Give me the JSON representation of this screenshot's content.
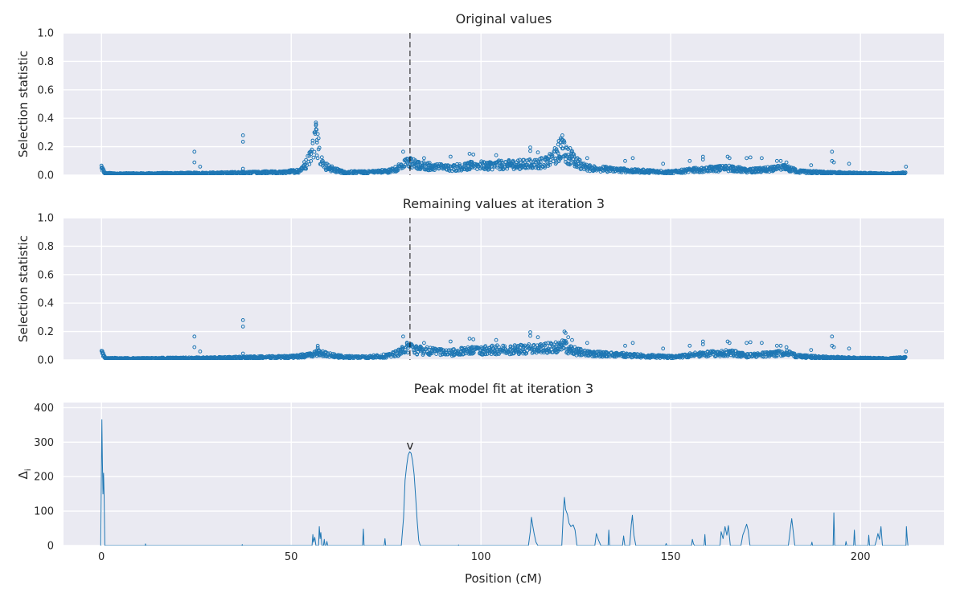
{
  "figure": {
    "xlabel": "Position (cM)"
  },
  "chart_data": [
    {
      "type": "scatter",
      "title": "Original values",
      "ylabel": "Selection statistic",
      "xlim": [
        -10,
        222
      ],
      "ylim": [
        0,
        1.0
      ],
      "x_ticks": [
        0,
        50,
        100,
        150,
        200
      ],
      "x_tick_labels": [
        "",
        "",
        "",
        "",
        ""
      ],
      "y_ticks": [
        0.0,
        0.2,
        0.4,
        0.6,
        0.8,
        1.0
      ],
      "y_tick_labels": [
        "0.0",
        "0.2",
        "0.4",
        "0.6",
        "0.8",
        "1.0"
      ],
      "vline_x": 81.3,
      "grid": true,
      "marker_color": "#1f77b4",
      "profile": [
        [
          0,
          0.06
        ],
        [
          0.5,
          0.03
        ],
        [
          1,
          0.012
        ],
        [
          5,
          0.01
        ],
        [
          10,
          0.01
        ],
        [
          20,
          0.012
        ],
        [
          30,
          0.014
        ],
        [
          40,
          0.018
        ],
        [
          48,
          0.02
        ],
        [
          52,
          0.03
        ],
        [
          54,
          0.08
        ],
        [
          55.5,
          0.17
        ],
        [
          56.5,
          0.27
        ],
        [
          57.5,
          0.15
        ],
        [
          58.5,
          0.07
        ],
        [
          61,
          0.04
        ],
        [
          64,
          0.02
        ],
        [
          70,
          0.02
        ],
        [
          76,
          0.03
        ],
        [
          79,
          0.06
        ],
        [
          81,
          0.095
        ],
        [
          83,
          0.07
        ],
        [
          87,
          0.06
        ],
        [
          92,
          0.05
        ],
        [
          97,
          0.065
        ],
        [
          103,
          0.07
        ],
        [
          110,
          0.075
        ],
        [
          115,
          0.08
        ],
        [
          118,
          0.1
        ],
        [
          120.5,
          0.16
        ],
        [
          121.5,
          0.2
        ],
        [
          123,
          0.14
        ],
        [
          125,
          0.09
        ],
        [
          128,
          0.05
        ],
        [
          134,
          0.04
        ],
        [
          140,
          0.03
        ],
        [
          146,
          0.025
        ],
        [
          150,
          0.02
        ],
        [
          156,
          0.035
        ],
        [
          162,
          0.045
        ],
        [
          166,
          0.05
        ],
        [
          170,
          0.03
        ],
        [
          176,
          0.04
        ],
        [
          180,
          0.05
        ],
        [
          184,
          0.025
        ],
        [
          190,
          0.018
        ],
        [
          200,
          0.012
        ],
        [
          207,
          0.01
        ],
        [
          212,
          0.015
        ]
      ],
      "outliers": [
        [
          24.5,
          0.165
        ],
        [
          24.5,
          0.09
        ],
        [
          26,
          0.06
        ],
        [
          37.3,
          0.28
        ],
        [
          37.3,
          0.235
        ],
        [
          37.3,
          0.045
        ],
        [
          56.5,
          0.37
        ],
        [
          56.5,
          0.35
        ],
        [
          56.7,
          0.32
        ],
        [
          57,
          0.29
        ],
        [
          57.2,
          0.26
        ],
        [
          56.8,
          0.23
        ],
        [
          79.5,
          0.165
        ],
        [
          85,
          0.12
        ],
        [
          92,
          0.13
        ],
        [
          97,
          0.15
        ],
        [
          98,
          0.145
        ],
        [
          104,
          0.14
        ],
        [
          113,
          0.195
        ],
        [
          113,
          0.17
        ],
        [
          115,
          0.16
        ],
        [
          121,
          0.26
        ],
        [
          121.5,
          0.25
        ],
        [
          122,
          0.23
        ],
        [
          120.5,
          0.24
        ],
        [
          122.5,
          0.2
        ],
        [
          123.5,
          0.19
        ],
        [
          124,
          0.17
        ],
        [
          128,
          0.12
        ],
        [
          138,
          0.1
        ],
        [
          140,
          0.12
        ],
        [
          148,
          0.08
        ],
        [
          155,
          0.1
        ],
        [
          158.5,
          0.13
        ],
        [
          158.5,
          0.11
        ],
        [
          165,
          0.13
        ],
        [
          165.5,
          0.12
        ],
        [
          170,
          0.12
        ],
        [
          171,
          0.125
        ],
        [
          174,
          0.12
        ],
        [
          178,
          0.1
        ],
        [
          179,
          0.1
        ],
        [
          180.5,
          0.09
        ],
        [
          187,
          0.07
        ],
        [
          192.5,
          0.165
        ],
        [
          192.5,
          0.1
        ],
        [
          193,
          0.09
        ],
        [
          197,
          0.08
        ],
        [
          212,
          0.06
        ]
      ]
    },
    {
      "type": "scatter",
      "title": "Remaining values at iteration 3",
      "ylabel": "Selection statistic",
      "xlim": [
        -10,
        222
      ],
      "ylim": [
        0,
        1.0
      ],
      "x_ticks": [
        0,
        50,
        100,
        150,
        200
      ],
      "x_tick_labels": [
        "",
        "",
        "",
        "",
        ""
      ],
      "y_ticks": [
        0.0,
        0.2,
        0.4,
        0.6,
        0.8,
        1.0
      ],
      "y_tick_labels": [
        "0.0",
        "0.2",
        "0.4",
        "0.6",
        "0.8",
        "1.0"
      ],
      "vline_x": 81.3,
      "grid": true,
      "marker_color": "#1f77b4",
      "profile": [
        [
          0,
          0.06
        ],
        [
          0.5,
          0.03
        ],
        [
          1,
          0.012
        ],
        [
          5,
          0.01
        ],
        [
          10,
          0.01
        ],
        [
          20,
          0.012
        ],
        [
          30,
          0.014
        ],
        [
          40,
          0.018
        ],
        [
          48,
          0.02
        ],
        [
          52,
          0.025
        ],
        [
          55,
          0.035
        ],
        [
          57,
          0.05
        ],
        [
          59,
          0.04
        ],
        [
          61,
          0.03
        ],
        [
          64,
          0.02
        ],
        [
          70,
          0.02
        ],
        [
          76,
          0.03
        ],
        [
          79,
          0.06
        ],
        [
          81,
          0.095
        ],
        [
          83,
          0.07
        ],
        [
          87,
          0.06
        ],
        [
          92,
          0.05
        ],
        [
          97,
          0.065
        ],
        [
          103,
          0.07
        ],
        [
          110,
          0.075
        ],
        [
          115,
          0.08
        ],
        [
          118,
          0.085
        ],
        [
          120.5,
          0.09
        ],
        [
          122,
          0.1
        ],
        [
          123,
          0.08
        ],
        [
          125,
          0.06
        ],
        [
          128,
          0.045
        ],
        [
          134,
          0.04
        ],
        [
          140,
          0.03
        ],
        [
          146,
          0.025
        ],
        [
          150,
          0.02
        ],
        [
          156,
          0.035
        ],
        [
          162,
          0.045
        ],
        [
          166,
          0.05
        ],
        [
          170,
          0.03
        ],
        [
          176,
          0.04
        ],
        [
          180,
          0.05
        ],
        [
          184,
          0.025
        ],
        [
          190,
          0.018
        ],
        [
          200,
          0.012
        ],
        [
          207,
          0.01
        ],
        [
          212,
          0.015
        ]
      ],
      "outliers": [
        [
          24.5,
          0.165
        ],
        [
          24.5,
          0.09
        ],
        [
          26,
          0.06
        ],
        [
          37.3,
          0.28
        ],
        [
          37.3,
          0.235
        ],
        [
          37.3,
          0.045
        ],
        [
          57,
          0.1
        ],
        [
          57,
          0.085
        ],
        [
          79.5,
          0.165
        ],
        [
          85,
          0.12
        ],
        [
          92,
          0.13
        ],
        [
          97,
          0.15
        ],
        [
          98,
          0.145
        ],
        [
          104,
          0.14
        ],
        [
          113,
          0.195
        ],
        [
          113,
          0.17
        ],
        [
          115,
          0.16
        ],
        [
          122,
          0.2
        ],
        [
          122.3,
          0.19
        ],
        [
          123,
          0.16
        ],
        [
          124,
          0.14
        ],
        [
          128,
          0.12
        ],
        [
          138,
          0.1
        ],
        [
          140,
          0.12
        ],
        [
          148,
          0.08
        ],
        [
          155,
          0.1
        ],
        [
          158.5,
          0.13
        ],
        [
          158.5,
          0.11
        ],
        [
          165,
          0.13
        ],
        [
          165.5,
          0.12
        ],
        [
          170,
          0.12
        ],
        [
          171,
          0.125
        ],
        [
          174,
          0.12
        ],
        [
          178,
          0.1
        ],
        [
          179,
          0.1
        ],
        [
          180.5,
          0.09
        ],
        [
          187,
          0.07
        ],
        [
          192.5,
          0.165
        ],
        [
          192.5,
          0.1
        ],
        [
          193,
          0.09
        ],
        [
          197,
          0.08
        ],
        [
          212,
          0.06
        ]
      ]
    },
    {
      "type": "line",
      "title": "Peak model fit at iteration 3",
      "ylabel": "Δ",
      "ylabel_sub": "i",
      "xlim": [
        -10,
        222
      ],
      "ylim": [
        0,
        415
      ],
      "x_ticks": [
        0,
        50,
        100,
        150,
        200
      ],
      "x_tick_labels": [
        "0",
        "50",
        "100",
        "150",
        "200"
      ],
      "y_ticks": [
        0,
        100,
        200,
        300,
        400
      ],
      "y_tick_labels": [
        "0",
        "100",
        "200",
        "300",
        "400"
      ],
      "grid": true,
      "line_color": "#1f77b4",
      "marker_label": "v",
      "marker_x": 81.3,
      "marker_y": 290,
      "points": [
        [
          -0.2,
          0
        ],
        [
          0.1,
          365
        ],
        [
          0.25,
          240
        ],
        [
          0.4,
          150
        ],
        [
          0.55,
          210
        ],
        [
          0.7,
          145
        ],
        [
          0.9,
          0
        ],
        [
          11.5,
          0
        ],
        [
          11.6,
          5
        ],
        [
          11.7,
          0
        ],
        [
          37,
          0
        ],
        [
          37.1,
          3
        ],
        [
          37.2,
          0
        ],
        [
          55.5,
          0
        ],
        [
          55.7,
          32
        ],
        [
          55.9,
          10
        ],
        [
          56.2,
          24
        ],
        [
          56.5,
          0
        ],
        [
          57.2,
          0
        ],
        [
          57.4,
          55
        ],
        [
          57.6,
          20
        ],
        [
          57.8,
          38
        ],
        [
          58.1,
          0
        ],
        [
          58.5,
          0
        ],
        [
          58.7,
          18
        ],
        [
          58.9,
          0
        ],
        [
          59.2,
          0
        ],
        [
          59.4,
          12
        ],
        [
          59.6,
          0
        ],
        [
          68.8,
          0
        ],
        [
          69.0,
          48
        ],
        [
          69.2,
          0
        ],
        [
          74.5,
          0
        ],
        [
          74.7,
          20
        ],
        [
          74.9,
          0
        ],
        [
          79,
          0
        ],
        [
          79.6,
          80
        ],
        [
          80.0,
          190
        ],
        [
          80.4,
          230
        ],
        [
          80.8,
          262
        ],
        [
          81.2,
          272
        ],
        [
          81.6,
          268
        ],
        [
          82.0,
          245
        ],
        [
          82.4,
          205
        ],
        [
          82.8,
          140
        ],
        [
          83.2,
          70
        ],
        [
          83.6,
          15
        ],
        [
          84,
          0
        ],
        [
          94,
          0
        ],
        [
          94.1,
          2
        ],
        [
          94.2,
          0
        ],
        [
          112.5,
          0
        ],
        [
          113,
          40
        ],
        [
          113.3,
          82
        ],
        [
          113.6,
          60
        ],
        [
          114,
          35
        ],
        [
          114.5,
          10
        ],
        [
          115,
          0
        ],
        [
          121.3,
          0
        ],
        [
          121.7,
          95
        ],
        [
          122.0,
          140
        ],
        [
          122.3,
          105
        ],
        [
          122.8,
          90
        ],
        [
          123.2,
          65
        ],
        [
          123.7,
          55
        ],
        [
          124.3,
          60
        ],
        [
          124.8,
          45
        ],
        [
          125.3,
          0
        ],
        [
          130,
          0
        ],
        [
          130.4,
          35
        ],
        [
          131,
          15
        ],
        [
          131.6,
          0
        ],
        [
          133.5,
          0
        ],
        [
          133.7,
          45
        ],
        [
          133.9,
          0
        ],
        [
          137.3,
          0
        ],
        [
          137.6,
          28
        ],
        [
          137.9,
          0
        ],
        [
          139.2,
          0
        ],
        [
          139.6,
          60
        ],
        [
          139.9,
          88
        ],
        [
          140.3,
          30
        ],
        [
          140.8,
          0
        ],
        [
          148.6,
          0
        ],
        [
          148.8,
          6
        ],
        [
          149,
          0
        ],
        [
          155.5,
          0
        ],
        [
          155.7,
          18
        ],
        [
          156,
          5
        ],
        [
          156.3,
          0
        ],
        [
          158.8,
          0
        ],
        [
          159,
          32
        ],
        [
          159.2,
          0
        ],
        [
          163,
          0
        ],
        [
          163.3,
          40
        ],
        [
          163.8,
          20
        ],
        [
          164.3,
          55
        ],
        [
          164.8,
          30
        ],
        [
          165.2,
          58
        ],
        [
          165.7,
          0
        ],
        [
          168.5,
          0
        ],
        [
          169,
          30
        ],
        [
          169.5,
          45
        ],
        [
          170,
          62
        ],
        [
          170.4,
          45
        ],
        [
          170.9,
          0
        ],
        [
          181,
          0
        ],
        [
          181.5,
          45
        ],
        [
          181.9,
          78
        ],
        [
          182.3,
          40
        ],
        [
          182.7,
          0
        ],
        [
          187,
          0
        ],
        [
          187.2,
          10
        ],
        [
          187.4,
          0
        ],
        [
          192.8,
          0
        ],
        [
          193,
          95
        ],
        [
          193.2,
          0
        ],
        [
          196,
          0
        ],
        [
          196.2,
          12
        ],
        [
          196.4,
          0
        ],
        [
          198.2,
          0
        ],
        [
          198.4,
          45
        ],
        [
          198.6,
          0
        ],
        [
          202,
          0
        ],
        [
          202.2,
          30
        ],
        [
          202.4,
          0
        ],
        [
          203.8,
          0
        ],
        [
          204.2,
          15
        ],
        [
          204.6,
          35
        ],
        [
          205,
          18
        ],
        [
          205.4,
          55
        ],
        [
          205.8,
          0
        ],
        [
          212,
          0
        ],
        [
          212.1,
          55
        ],
        [
          212.3,
          25
        ],
        [
          212.5,
          0
        ]
      ]
    }
  ]
}
